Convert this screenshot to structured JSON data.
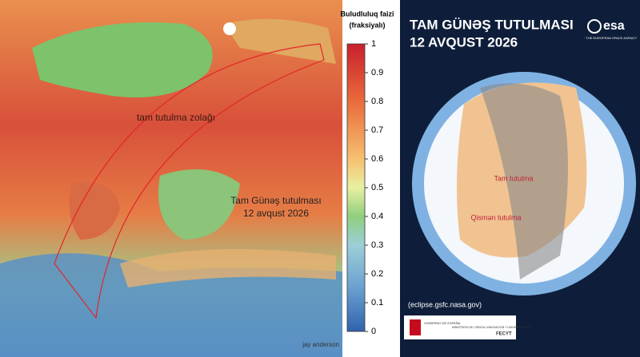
{
  "left_map": {
    "path_label": "tam tutulma zolağı",
    "event_title": "Tam Günəş tutulması",
    "event_date": "12 avqust 2026",
    "credit": "jay anderson"
  },
  "colorbar": {
    "title": "Buludluluq faizi",
    "subtitle": "(fraksiyalı)",
    "ticks": [
      0,
      0.1,
      0.2,
      0.3,
      0.4,
      0.5,
      0.6,
      0.7,
      0.8,
      0.9,
      1
    ]
  },
  "right_panel": {
    "title": "TAM GÜNƏŞ TUTULMASI",
    "date": "12 AVQUST 2026",
    "logo": "esa",
    "logo_sub": "· THE EUROPEAN SPACE AGENCY",
    "total_label": "Tam tutulma",
    "partial_label": "Qismən tutulma",
    "source": "(eclipse.gsfc.nasa.gov)",
    "gov": "GOBIERNO DE ESPAÑA",
    "ministry": "MINISTERIO DE CIENCIA, INNOVACIÓN Y UNIVERSIDADES",
    "fecyt": "FECYT"
  }
}
